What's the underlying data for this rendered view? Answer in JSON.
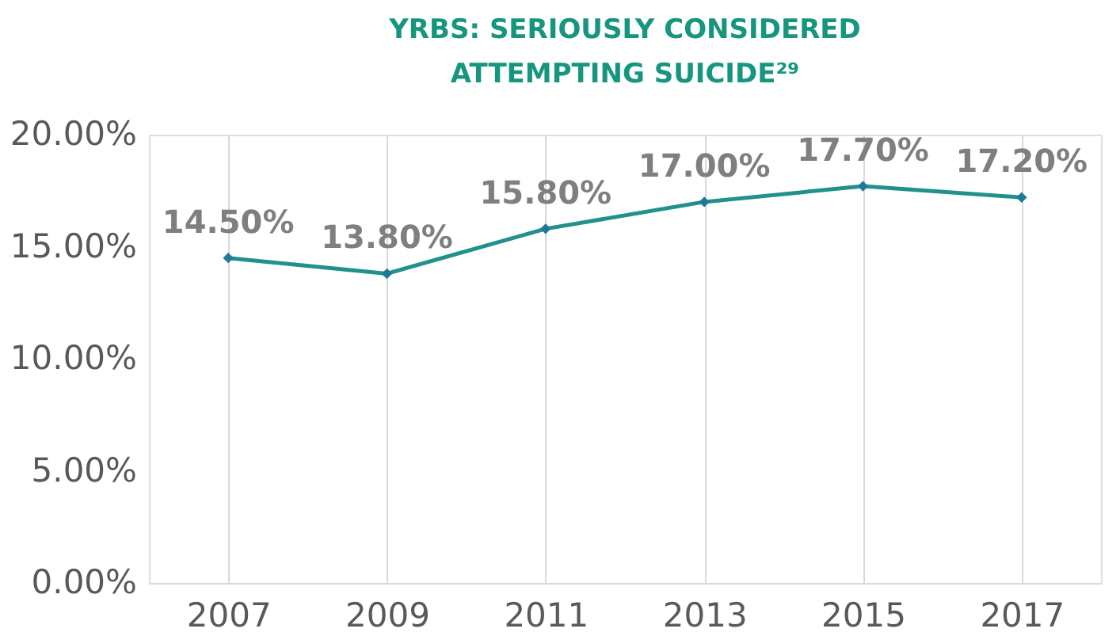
{
  "chart_data": {
    "type": "line",
    "title": "YRBS: SERIOUSLY CONSIDERED ATTEMPTING SUICIDE²⁹",
    "categories": [
      "2007",
      "2009",
      "2011",
      "2013",
      "2015",
      "2017"
    ],
    "series": [
      {
        "color": "#21918c",
        "values": [
          14.5,
          13.8,
          15.8,
          17.0,
          17.7,
          17.2
        ],
        "value_labels": [
          "14.50%",
          "13.80%",
          "15.80%",
          "17.00%",
          "17.70%",
          "17.20%"
        ]
      }
    ],
    "ylim": [
      0,
      20
    ],
    "yticks": [
      {
        "value": 0,
        "label": "0.00%"
      },
      {
        "value": 5,
        "label": "5.00%"
      },
      {
        "value": 10,
        "label": "10.00%"
      },
      {
        "value": 15,
        "label": "15.00%"
      },
      {
        "value": 20,
        "label": "20.00%"
      }
    ],
    "grid": "x",
    "marker": "diamond",
    "line_style": "solid"
  }
}
